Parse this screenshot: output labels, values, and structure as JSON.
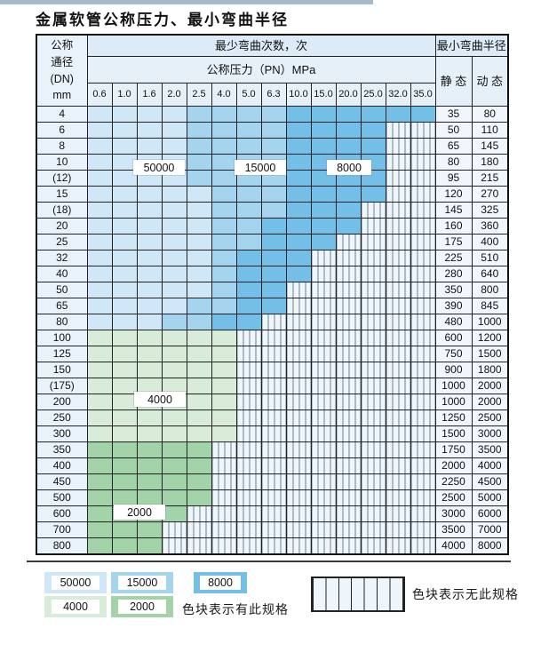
{
  "title": "金属软管公称压力、最小弯曲半径",
  "table": {
    "header": {
      "dn_lines": [
        "公称",
        "通径",
        "(DN)",
        "mm"
      ],
      "bend_cycles": "最少弯曲次数，次",
      "min_radius": "最小弯曲半径",
      "pressure": "公称压力（PN）MPa",
      "static": "静 态",
      "dynamic": "动 态"
    },
    "pressure_columns": [
      "0.6",
      "1.0",
      "1.6",
      "2.0",
      "2.5",
      "4.0",
      "5.0",
      "6.3",
      "10.0",
      "15.0",
      "20.0",
      "25.0",
      "32.0",
      "35.0"
    ],
    "cell_legend": {
      "1": "50000",
      "2": "15000",
      "3": "8000",
      "4": "4000",
      "5": "2000",
      "x": "no-spec"
    },
    "rows": [
      {
        "dn": "4",
        "cells": "11112222333333",
        "st": "35",
        "dy": "80"
      },
      {
        "dn": "6",
        "cells": "111122223333xx",
        "st": "50",
        "dy": "110"
      },
      {
        "dn": "8",
        "cells": "111122223333xx",
        "st": "65",
        "dy": "145"
      },
      {
        "dn": "10",
        "cells": "111122223333xx",
        "st": "80",
        "dy": "180"
      },
      {
        "dn": "(12)",
        "cells": "111122223333xx",
        "st": "95",
        "dy": "215"
      },
      {
        "dn": "15",
        "cells": "111112223333xx",
        "st": "120",
        "dy": "270"
      },
      {
        "dn": "(18)",
        "cells": "11111222333xxx",
        "st": "145",
        "dy": "325"
      },
      {
        "dn": "20",
        "cells": "11111223333xxx",
        "st": "160",
        "dy": "360"
      },
      {
        "dn": "25",
        "cells": "1111122333xxxx",
        "st": "175",
        "dy": "400"
      },
      {
        "dn": "32",
        "cells": "111112333xxxxx",
        "st": "225",
        "dy": "510"
      },
      {
        "dn": "40",
        "cells": "111112333xxxxx",
        "st": "280",
        "dy": "640"
      },
      {
        "dn": "50",
        "cells": "11111233xxxxxx",
        "st": "350",
        "dy": "800"
      },
      {
        "dn": "65",
        "cells": "11112233xxxxxx",
        "st": "390",
        "dy": "845"
      },
      {
        "dn": "80",
        "cells": "1112233xxxxxxx",
        "st": "480",
        "dy": "1000"
      },
      {
        "dn": "100",
        "cells": "444444xxxxxxxx",
        "st": "600",
        "dy": "1200"
      },
      {
        "dn": "125",
        "cells": "444444xxxxxxxx",
        "st": "750",
        "dy": "1500"
      },
      {
        "dn": "150",
        "cells": "444444xxxxxxxx",
        "st": "900",
        "dy": "1800"
      },
      {
        "dn": "(175)",
        "cells": "444444xxxxxxxx",
        "st": "1000",
        "dy": "2000"
      },
      {
        "dn": "200",
        "cells": "444444xxxxxxxx",
        "st": "1000",
        "dy": "2000"
      },
      {
        "dn": "250",
        "cells": "444444xxxxxxxx",
        "st": "1250",
        "dy": "2500"
      },
      {
        "dn": "300",
        "cells": "444444xxxxxxxx",
        "st": "1500",
        "dy": "3000"
      },
      {
        "dn": "350",
        "cells": "55555xxxxxxxxx",
        "st": "1750",
        "dy": "3500"
      },
      {
        "dn": "400",
        "cells": "55555xxxxxxxxx",
        "st": "2000",
        "dy": "4000"
      },
      {
        "dn": "450",
        "cells": "55555xxxxxxxxx",
        "st": "2250",
        "dy": "4500"
      },
      {
        "dn": "500",
        "cells": "55555xxxxxxxxx",
        "st": "2500",
        "dy": "5000"
      },
      {
        "dn": "600",
        "cells": "5555xxxxxxxxxx",
        "st": "3000",
        "dy": "6000"
      },
      {
        "dn": "700",
        "cells": "555xxxxxxxxxxx",
        "st": "3500",
        "dy": "7000"
      },
      {
        "dn": "800",
        "cells": "555xxxxxxxxxxx",
        "st": "4000",
        "dy": "8000"
      }
    ]
  },
  "overlays": [
    {
      "text": "50000"
    },
    {
      "text": "15000"
    },
    {
      "text": "8000"
    },
    {
      "text": "4000"
    },
    {
      "text": "2000"
    }
  ],
  "legend": {
    "items": [
      {
        "label": "50000",
        "color": "#cfe7f6"
      },
      {
        "label": "15000",
        "color": "#a5d4ef"
      },
      {
        "label": "8000",
        "color": "#74bfe8"
      },
      {
        "label": "4000",
        "color": "#d8ecd9"
      },
      {
        "label": "2000",
        "color": "#a3d3a8"
      }
    ],
    "has_spec_text": "色块表示有此规格",
    "no_spec_text": "色块表示无此规格"
  },
  "colors": {
    "cycle_50000": "#cfe7f6",
    "cycle_15000": "#a5d4ef",
    "cycle_8000": "#74bfe8",
    "cycle_4000": "#d8ecd9",
    "cycle_2000": "#a3d3a8",
    "hatch_bg": "#eef5fb",
    "hatch_line": "#6f7f8c",
    "header_bg": "#dcebf7",
    "subheader_bg": "#e5f0f9",
    "label_bg": "#e9f2fa",
    "grid": "#222222"
  }
}
